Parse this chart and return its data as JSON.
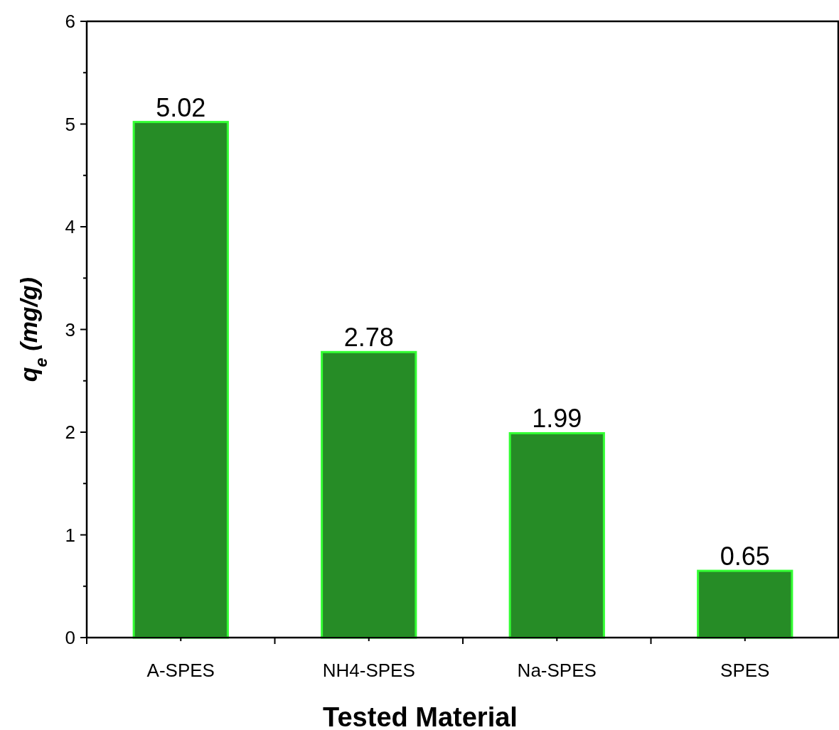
{
  "chart_data": {
    "type": "bar",
    "xlabel": "Tested Material",
    "ylabel": "q$_{e}$ (mg/g)",
    "categories": [
      "A-SPES",
      "NH4-SPES",
      "Na-SPES",
      "SPES"
    ],
    "values": [
      5.02,
      2.78,
      1.99,
      0.65
    ],
    "color": "#268c26",
    "ylim": [
      0,
      6
    ],
    "yticks": [
      0,
      1,
      2,
      3,
      4,
      5,
      6
    ],
    "grid": false,
    "data_labels": true
  }
}
